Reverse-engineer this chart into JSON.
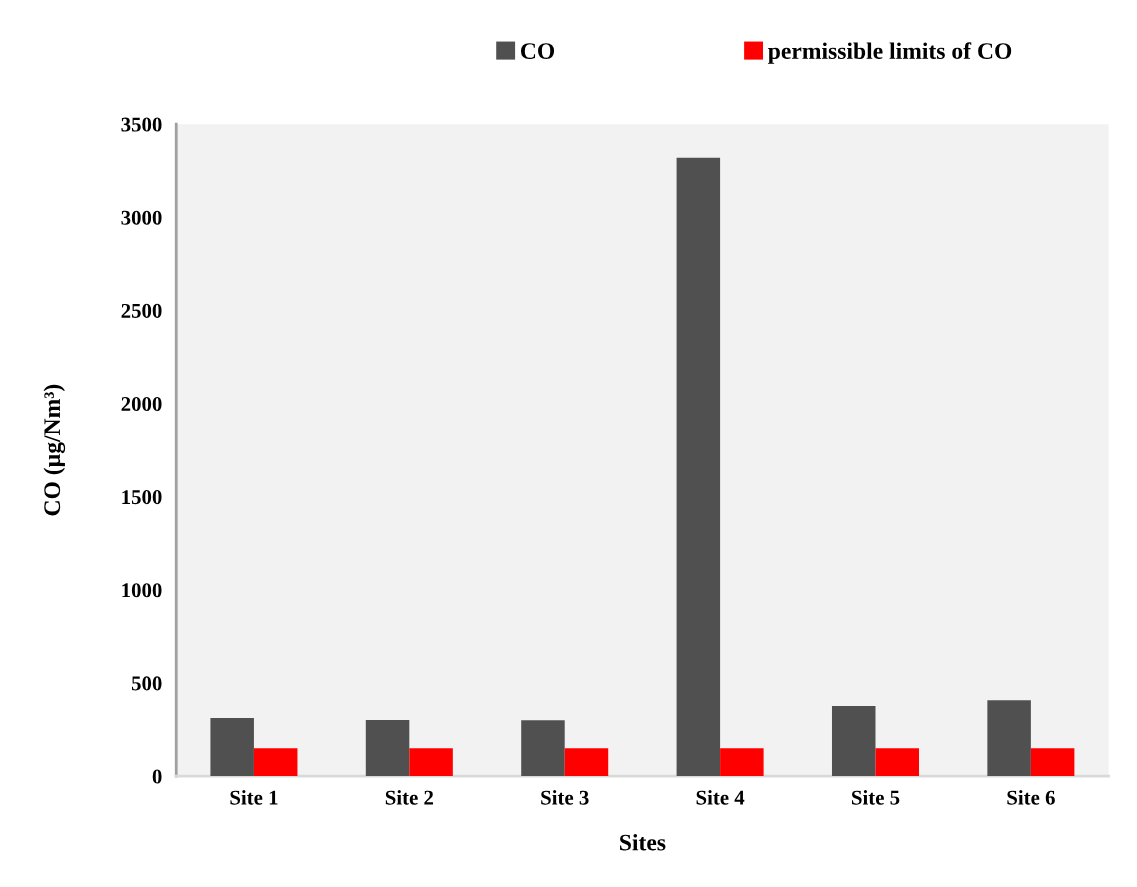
{
  "chart_data": {
    "type": "bar",
    "xlabel": "Sites",
    "ylabel": "CO (µg/Nm³)",
    "categories": [
      "Site 1",
      "Site 2",
      "Site 3",
      "Site 4",
      "Site 5",
      "Site 6"
    ],
    "series": [
      {
        "name": "CO",
        "color": "#505050",
        "values": [
          312,
          301,
          300,
          3320,
          376,
          408
        ]
      },
      {
        "name": "permissible limits of CO",
        "color": "#ff0000",
        "values": [
          150,
          150,
          150,
          150,
          150,
          150
        ]
      }
    ],
    "ylim": [
      0,
      3500
    ],
    "yticks": [
      0,
      500,
      1000,
      1500,
      2000,
      2500,
      3000,
      3500
    ],
    "grid": false,
    "legend": "top"
  }
}
